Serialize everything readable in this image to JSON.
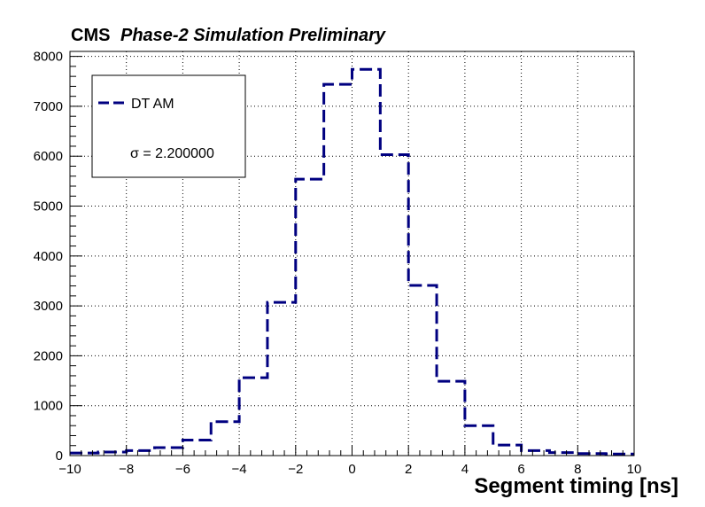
{
  "header": {
    "experiment": "CMS",
    "subtitle": "Phase-2 Simulation Preliminary"
  },
  "legend": {
    "entry_label": "DT AM",
    "sigma_text": "σ = 2.200000"
  },
  "colors": {
    "series": "#000080",
    "axis": "#000000",
    "grid": "#000000"
  },
  "chart_data": {
    "type": "histogram",
    "title": "",
    "xlabel": "Segment timing [ns]",
    "ylabel": "",
    "xlim": [
      -10,
      10
    ],
    "ylim": [
      0,
      8100
    ],
    "grid": true,
    "legend_position": "top-left",
    "x_ticks": [
      -10,
      -8,
      -6,
      -4,
      -2,
      0,
      2,
      4,
      6,
      8,
      10
    ],
    "x_tick_labels": [
      "−10",
      "−8",
      "−6",
      "−4",
      "−2",
      "0",
      "2",
      "4",
      "6",
      "8",
      "10"
    ],
    "y_ticks": [
      0,
      1000,
      2000,
      3000,
      4000,
      5000,
      6000,
      7000,
      8000
    ],
    "y_tick_labels": [
      "0",
      "1000",
      "2000",
      "3000",
      "4000",
      "5000",
      "6000",
      "7000",
      "8000"
    ],
    "bin_edges": [
      -10,
      -9,
      -8,
      -7,
      -6,
      -5,
      -4,
      -3,
      -2,
      -1,
      0,
      1,
      2,
      3,
      4,
      5,
      6,
      7,
      8,
      9,
      10
    ],
    "series": [
      {
        "name": "DT AM",
        "values": [
          50,
          70,
          100,
          160,
          310,
          680,
          1560,
          3070,
          5540,
          7440,
          7740,
          6030,
          3410,
          1490,
          600,
          210,
          100,
          60,
          40,
          30
        ]
      }
    ]
  }
}
